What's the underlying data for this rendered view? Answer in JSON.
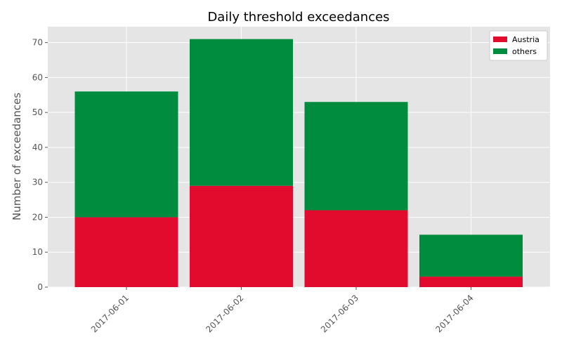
{
  "chart_data": {
    "type": "bar",
    "stacked": true,
    "title": "Daily threshold exceedances",
    "xlabel": "",
    "ylabel": "Number of exceedances",
    "categories": [
      "2017-06-01",
      "2017-06-02",
      "2017-06-03",
      "2017-06-04"
    ],
    "series": [
      {
        "name": "Austria",
        "color": "#e20b2d",
        "values": [
          20,
          29,
          22,
          3
        ]
      },
      {
        "name": "others",
        "color": "#008c3f",
        "values": [
          36,
          42,
          31,
          12
        ]
      }
    ],
    "ylim": [
      0,
      74.55
    ],
    "yticks": [
      0,
      10,
      20,
      30,
      40,
      50,
      60,
      70
    ],
    "grid": true,
    "legend_position": "top-right",
    "background": "#e5e5e5"
  }
}
